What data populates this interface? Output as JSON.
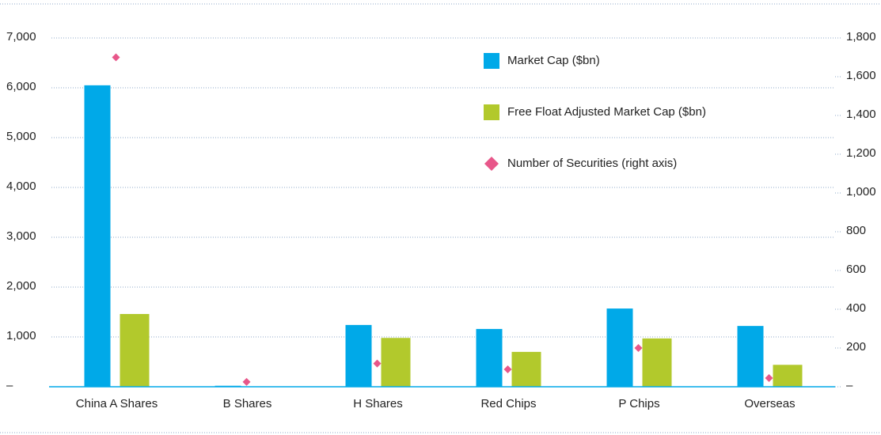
{
  "chart_data": {
    "type": "bar",
    "categories": [
      "China A Shares",
      "B Shares",
      "H Shares",
      "Red Chips",
      "P Chips",
      "Overseas"
    ],
    "series": [
      {
        "name": "Market Cap ($bn)",
        "color": "#00a9e8",
        "values": [
          6050,
          20,
          1240,
          1160,
          1570,
          1220
        ]
      },
      {
        "name": "Free Float Adjusted Market Cap ($bn)",
        "color": "#b2c92c",
        "values": [
          1460,
          8,
          980,
          700,
          970,
          440
        ]
      },
      {
        "name": "Number of Securities (right axis)",
        "color": "#e8578a",
        "type": "scatter",
        "axis": "y2",
        "values": [
          1700,
          25,
          120,
          90,
          200,
          45
        ]
      }
    ],
    "ylim": [
      0,
      7000
    ],
    "yticks": [
      {
        "value": 0,
        "label": "–"
      },
      {
        "value": 1000,
        "label": "1,000"
      },
      {
        "value": 2000,
        "label": "2,000"
      },
      {
        "value": 3000,
        "label": "3,000"
      },
      {
        "value": 4000,
        "label": "4,000"
      },
      {
        "value": 5000,
        "label": "5,000"
      },
      {
        "value": 6000,
        "label": "6,000"
      },
      {
        "value": 7000,
        "label": "7,000"
      }
    ],
    "y2lim": [
      0,
      1800
    ],
    "y2ticks": [
      {
        "value": 0,
        "label": "–"
      },
      200,
      400,
      600,
      800,
      {
        "value": 1000,
        "label": "1,000"
      },
      {
        "value": 1200,
        "label": "1,200"
      },
      {
        "value": 1400,
        "label": "1,400"
      },
      {
        "value": 1600,
        "label": "1,600"
      },
      {
        "value": 1800,
        "label": "1,800"
      }
    ],
    "grid": true,
    "legend": "upper right"
  }
}
